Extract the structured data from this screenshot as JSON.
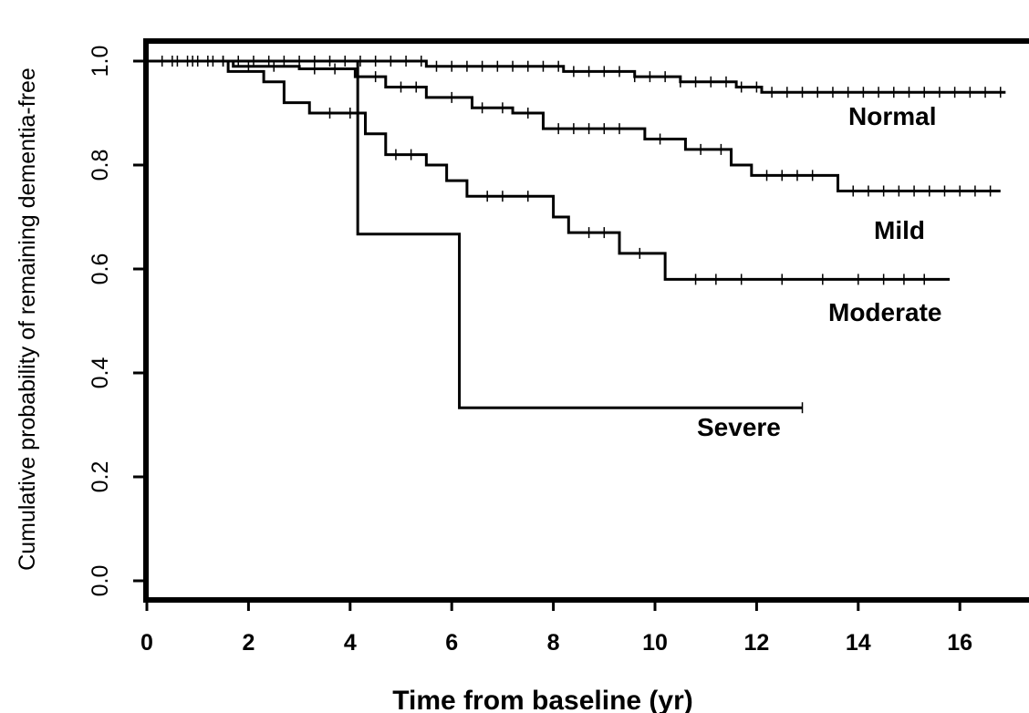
{
  "chart_data": {
    "type": "line",
    "title": "",
    "xlabel": "Time from baseline (yr)",
    "ylabel": "Cumulative probability of remaining dementia-free",
    "xlim": [
      0,
      17
    ],
    "ylim": [
      0.0,
      1.0
    ],
    "xticks": [
      "0",
      "2",
      "4",
      "6",
      "8",
      "10",
      "12",
      "14",
      "16"
    ],
    "yticks": [
      "0.0",
      "0.2",
      "0.4",
      "0.6",
      "0.8",
      "1.0"
    ],
    "grid": false,
    "legend": "none",
    "series": [
      {
        "name": "Normal",
        "step_points": [
          [
            0,
            1.0
          ],
          [
            5.5,
            0.99
          ],
          [
            8.2,
            0.98
          ],
          [
            9.6,
            0.97
          ],
          [
            10.5,
            0.96
          ],
          [
            11.6,
            0.95
          ],
          [
            12.1,
            0.94
          ],
          [
            16.9,
            0.94
          ]
        ],
        "censor_times": [
          0.3,
          0.6,
          0.9,
          1.2,
          1.5,
          1.8,
          2.1,
          2.4,
          2.7,
          3.0,
          3.3,
          3.6,
          3.9,
          4.2,
          4.5,
          4.8,
          5.1,
          5.4,
          5.7,
          6.0,
          6.3,
          6.6,
          6.9,
          7.2,
          7.5,
          7.8,
          8.1,
          8.4,
          8.7,
          9.0,
          9.3,
          9.6,
          9.9,
          10.2,
          10.5,
          10.8,
          11.1,
          11.4,
          11.7,
          12.0,
          12.3,
          12.6,
          12.9,
          13.2,
          13.5,
          13.8,
          14.1,
          14.4,
          14.7,
          15.0,
          15.3,
          15.6,
          15.9,
          16.2,
          16.5,
          16.8
        ]
      },
      {
        "name": "Mild",
        "step_points": [
          [
            0,
            1.0
          ],
          [
            1.7,
            0.99
          ],
          [
            3.0,
            0.985
          ],
          [
            4.1,
            0.97
          ],
          [
            4.7,
            0.95
          ],
          [
            5.5,
            0.93
          ],
          [
            6.4,
            0.91
          ],
          [
            7.2,
            0.9
          ],
          [
            7.8,
            0.87
          ],
          [
            9.8,
            0.85
          ],
          [
            10.6,
            0.83
          ],
          [
            11.5,
            0.8
          ],
          [
            11.9,
            0.78
          ],
          [
            13.6,
            0.75
          ],
          [
            16.8,
            0.75
          ]
        ],
        "censor_times": [
          0.5,
          1.0,
          1.5,
          2.0,
          2.5,
          3.3,
          3.7,
          4.5,
          5.0,
          5.3,
          6.0,
          6.6,
          7.0,
          7.5,
          8.1,
          8.4,
          8.7,
          9.0,
          9.3,
          10.1,
          10.9,
          11.3,
          12.2,
          12.5,
          12.8,
          13.1,
          13.9,
          14.2,
          14.5,
          14.8,
          15.1,
          15.4,
          15.7,
          16.0,
          16.3,
          16.6
        ]
      },
      {
        "name": "Moderate",
        "step_points": [
          [
            0,
            1.0
          ],
          [
            1.6,
            0.98
          ],
          [
            2.3,
            0.96
          ],
          [
            2.7,
            0.92
          ],
          [
            3.2,
            0.9
          ],
          [
            4.3,
            0.86
          ],
          [
            4.7,
            0.82
          ],
          [
            5.5,
            0.8
          ],
          [
            5.9,
            0.77
          ],
          [
            6.3,
            0.74
          ],
          [
            8.0,
            0.7
          ],
          [
            8.3,
            0.67
          ],
          [
            9.3,
            0.63
          ],
          [
            10.2,
            0.58
          ],
          [
            15.8,
            0.58
          ]
        ],
        "censor_times": [
          0.8,
          1.3,
          3.6,
          4.0,
          4.9,
          5.2,
          6.7,
          7.0,
          7.5,
          8.7,
          9.0,
          9.7,
          10.8,
          11.2,
          11.7,
          12.5,
          13.3,
          14.0,
          14.5,
          14.9,
          15.3
        ]
      },
      {
        "name": "Severe",
        "step_points": [
          [
            0,
            1.0
          ],
          [
            4.15,
            1.0
          ],
          [
            4.15,
            0.667
          ],
          [
            6.15,
            0.667
          ],
          [
            6.15,
            0.333
          ],
          [
            12.9,
            0.333
          ]
        ],
        "censor_times": [
          12.9
        ]
      }
    ],
    "annotations": [
      "Normal",
      "Mild",
      "Moderate",
      "Severe"
    ]
  }
}
